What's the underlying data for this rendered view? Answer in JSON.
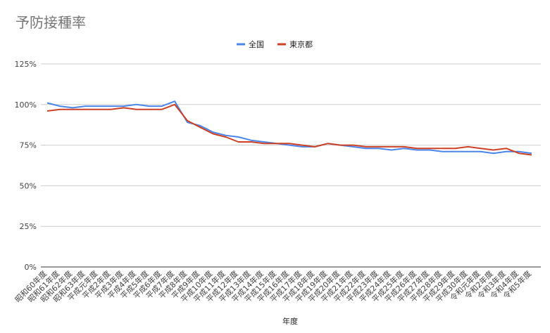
{
  "chart_data": {
    "type": "line",
    "title": "予防接種率",
    "xlabel": "年度",
    "ylabel": "",
    "ylim": [
      0,
      1.25
    ],
    "yticks": [
      "0%",
      "25%",
      "50%",
      "75%",
      "100%",
      "125%"
    ],
    "grid": true,
    "legend_position": "top",
    "categories": [
      "昭和60年度",
      "昭和61年度",
      "昭和62年度",
      "昭和63年度",
      "平成元年度",
      "平成2年度",
      "平成3年度",
      "平成4年度",
      "平成5年度",
      "平成6年度",
      "平成7年度",
      "平成8年度",
      "平成9年度",
      "平成10年度",
      "平成11年度",
      "平成12年度",
      "平成13年度",
      "平成14年度",
      "平成15年度",
      "平成16年度",
      "平成17年度",
      "平成18年度",
      "平成19年度",
      "平成20年度",
      "平成21年度",
      "平成22年度",
      "平成23年度",
      "平成24年度",
      "平成25年度",
      "平成26年度",
      "平成27年度",
      "平成28年度",
      "平成29年度",
      "平成30年度",
      "令和元年度",
      "令和2年度",
      "令和3年度",
      "令和4年度",
      "令和5年度"
    ],
    "series": [
      {
        "name": "全国",
        "color": "#4a86e8",
        "values": [
          1.01,
          0.99,
          0.98,
          0.99,
          0.99,
          0.99,
          0.99,
          1.0,
          0.99,
          0.99,
          1.02,
          0.89,
          0.87,
          0.83,
          0.81,
          0.8,
          0.78,
          0.77,
          0.76,
          0.75,
          0.74,
          0.74,
          0.76,
          0.75,
          0.74,
          0.73,
          0.73,
          0.72,
          0.73,
          0.72,
          0.72,
          0.71,
          0.71,
          0.71,
          0.71,
          0.7,
          0.71,
          0.71,
          0.7
        ]
      },
      {
        "name": "東京都",
        "color": "#cc4125",
        "values": [
          0.96,
          0.97,
          0.97,
          0.97,
          0.97,
          0.97,
          0.98,
          0.97,
          0.97,
          0.97,
          1.0,
          0.9,
          0.86,
          0.82,
          0.8,
          0.77,
          0.77,
          0.76,
          0.76,
          0.76,
          0.75,
          0.74,
          0.76,
          0.75,
          0.75,
          0.74,
          0.74,
          0.74,
          0.74,
          0.73,
          0.73,
          0.73,
          0.73,
          0.74,
          0.73,
          0.72,
          0.73,
          0.7,
          0.69
        ]
      }
    ]
  }
}
